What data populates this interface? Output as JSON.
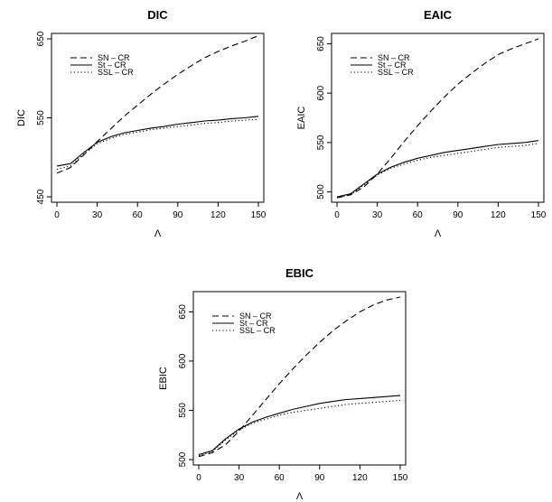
{
  "chart_data": [
    {
      "type": "line",
      "title": "DIC",
      "xlabel": "Λ",
      "ylabel": "DIC",
      "xlim": [
        0,
        150
      ],
      "ylim": [
        450,
        650
      ],
      "xticks": [
        0,
        30,
        60,
        90,
        120,
        150
      ],
      "yticks": [
        450,
        550,
        650
      ],
      "legend_position": "top-left",
      "x": [
        0,
        10,
        20,
        30,
        40,
        50,
        60,
        70,
        80,
        90,
        100,
        110,
        120,
        130,
        140,
        150
      ],
      "series": [
        {
          "name": "SN – CR",
          "style": "dashed",
          "values": [
            480,
            487,
            503,
            520,
            536,
            552,
            566,
            580,
            593,
            605,
            616,
            626,
            634,
            641,
            647,
            654
          ]
        },
        {
          "name": "St – CR",
          "style": "solid",
          "values": [
            489,
            492,
            506,
            519,
            526,
            531,
            534,
            537,
            539,
            542,
            544,
            546,
            547,
            549,
            550,
            552
          ]
        },
        {
          "name": "SSL – CR",
          "style": "dotted",
          "values": [
            485,
            489,
            504,
            517,
            524,
            529,
            532,
            535,
            537,
            539,
            541,
            543,
            544,
            546,
            547,
            548
          ]
        }
      ]
    },
    {
      "type": "line",
      "title": "EAIC",
      "xlabel": "Λ",
      "ylabel": "EAIC",
      "xlim": [
        0,
        150
      ],
      "ylim": [
        495,
        655
      ],
      "xticks": [
        0,
        30,
        60,
        90,
        120,
        150
      ],
      "yticks": [
        500,
        550,
        600,
        650
      ],
      "legend_position": "top-left",
      "x": [
        0,
        10,
        20,
        30,
        40,
        50,
        60,
        70,
        80,
        90,
        100,
        110,
        120,
        130,
        140,
        150
      ],
      "series": [
        {
          "name": "SN – CR",
          "style": "dashed",
          "values": [
            494,
            497,
            505,
            518,
            534,
            551,
            567,
            582,
            596,
            609,
            620,
            630,
            639,
            645,
            650,
            655
          ]
        },
        {
          "name": "St – CR",
          "style": "solid",
          "values": [
            495,
            498,
            508,
            518,
            525,
            530,
            534,
            537,
            540,
            542,
            544,
            546,
            548,
            549,
            550,
            552
          ]
        },
        {
          "name": "SSL – CR",
          "style": "dotted",
          "values": [
            494,
            497,
            507,
            517,
            524,
            528,
            532,
            535,
            537,
            539,
            541,
            543,
            545,
            546,
            547,
            549
          ]
        }
      ]
    },
    {
      "type": "line",
      "title": "EBIC",
      "xlabel": "Λ",
      "ylabel": "EBIC",
      "xlim": [
        0,
        150
      ],
      "ylim": [
        500,
        665
      ],
      "xticks": [
        0,
        30,
        60,
        90,
        120,
        150
      ],
      "yticks": [
        500,
        550,
        600,
        650
      ],
      "legend_position": "top-left",
      "x": [
        0,
        10,
        20,
        30,
        40,
        50,
        60,
        70,
        80,
        90,
        100,
        110,
        120,
        130,
        140,
        150
      ],
      "series": [
        {
          "name": "SN – CR",
          "style": "dashed",
          "values": [
            503,
            507,
            515,
            529,
            545,
            561,
            577,
            592,
            606,
            619,
            631,
            641,
            650,
            657,
            662,
            665
          ]
        },
        {
          "name": "St – CR",
          "style": "solid",
          "values": [
            505,
            509,
            521,
            531,
            538,
            543,
            547,
            551,
            554,
            557,
            559,
            561,
            562,
            563,
            564,
            565
          ]
        },
        {
          "name": "SSL – CR",
          "style": "dotted",
          "values": [
            504,
            508,
            520,
            530,
            537,
            541,
            545,
            548,
            550,
            552,
            554,
            556,
            557,
            558,
            559,
            560
          ]
        }
      ]
    }
  ]
}
